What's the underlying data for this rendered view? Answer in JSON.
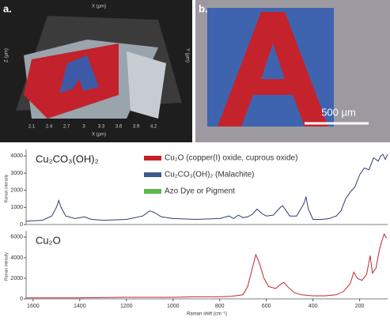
{
  "panels": [
    {
      "label": "a.",
      "x_title": "X (µm)",
      "y_title": "Y (µm)",
      "z_title": "Z (µm)",
      "x_ticks": [
        "2.1",
        "2.4",
        "2.7",
        "3",
        "3.3",
        "3.6",
        "3.9",
        "4.2"
      ]
    },
    {
      "label": "b.",
      "scale_bar": "500 µm"
    }
  ],
  "legend": [
    {
      "name": "Cu₂O (copper(I) oxide, cuprous oxide)",
      "color": "#c8202a"
    },
    {
      "name": "Cu₂CO₃(OH)₂ (Malachite)",
      "color": "#3d5a8a"
    },
    {
      "name": "Azo Dye or Pigment",
      "color": "#5cb848"
    }
  ],
  "chart_data": [
    {
      "type": "line",
      "label": "Cu₂CO₃(OH)₂",
      "ylabel": "Raman intensity",
      "xlim": [
        1630,
        80
      ],
      "ylim": [
        0,
        4200
      ],
      "yticks": [
        0,
        1000,
        2000,
        3000,
        4000
      ],
      "series": [
        {
          "name": "Cu₂CO₃(OH)₂",
          "color": "#2f3f6e",
          "x": [
            1630,
            1560,
            1520,
            1500,
            1490,
            1480,
            1460,
            1420,
            1380,
            1350,
            1300,
            1200,
            1130,
            1100,
            1080,
            1050,
            1000,
            900,
            800,
            760,
            740,
            720,
            700,
            680,
            660,
            640,
            620,
            600,
            570,
            540,
            530,
            520,
            500,
            470,
            440,
            430,
            420,
            400,
            360,
            330,
            300,
            280,
            260,
            240,
            220,
            200,
            180,
            160,
            140,
            120,
            110,
            100,
            90,
            80
          ],
          "values": [
            200,
            250,
            500,
            1000,
            1400,
            1000,
            500,
            350,
            450,
            300,
            250,
            300,
            500,
            800,
            700,
            450,
            350,
            300,
            350,
            500,
            350,
            550,
            400,
            450,
            600,
            900,
            650,
            500,
            550,
            1000,
            1100,
            900,
            500,
            500,
            1200,
            1600,
            900,
            300,
            300,
            350,
            500,
            800,
            1500,
            1900,
            2200,
            2900,
            3300,
            3200,
            3900,
            3700,
            4000,
            4100,
            3800,
            4100
          ]
        }
      ]
    },
    {
      "type": "line",
      "label": "Cu₂O",
      "ylabel": "Raman intensity",
      "xlabel": "Raman shift (cm⁻¹)",
      "xlim": [
        1630,
        80
      ],
      "xticks": [
        1600,
        1400,
        1200,
        1000,
        800,
        600,
        400,
        200
      ],
      "ylim": [
        0,
        6300
      ],
      "yticks": [
        0,
        2000,
        4000,
        6000
      ],
      "series": [
        {
          "name": "Cu₂O",
          "color": "#c0282a",
          "x": [
            1630,
            1400,
            1200,
            1000,
            900,
            800,
            750,
            700,
            680,
            660,
            645,
            630,
            610,
            590,
            560,
            540,
            525,
            505,
            480,
            450,
            400,
            350,
            300,
            270,
            240,
            225,
            210,
            190,
            170,
            155,
            145,
            130,
            115,
            105,
            95,
            85
          ],
          "values": [
            100,
            100,
            150,
            150,
            200,
            200,
            250,
            400,
            1200,
            3000,
            4300,
            3500,
            2000,
            1200,
            1000,
            1400,
            1600,
            1100,
            600,
            400,
            300,
            300,
            400,
            700,
            1500,
            2600,
            2000,
            1800,
            2400,
            4200,
            2500,
            3000,
            4800,
            5600,
            6300,
            5900
          ]
        }
      ]
    }
  ]
}
